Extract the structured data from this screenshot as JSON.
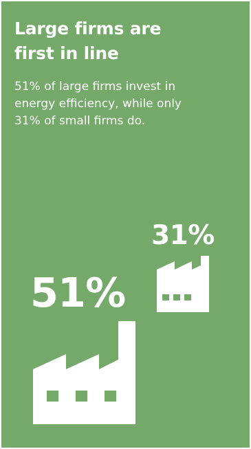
{
  "headline": "Large firms are\nfirst in line",
  "description": "51% of large firms invest in\nenergy efficiency, while only\n31% of small firms do.",
  "small_firms": {
    "percent_label": "31%",
    "icon": "factory-icon"
  },
  "large_firms": {
    "percent_label": "51%",
    "icon": "factory-icon"
  },
  "colors": {
    "background": "#74a96a",
    "foreground": "#ffffff"
  }
}
